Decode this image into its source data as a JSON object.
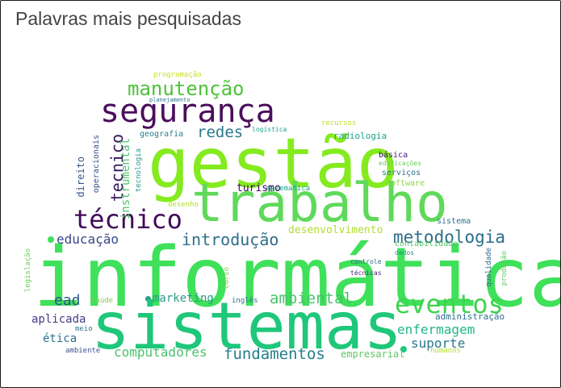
{
  "title": "Palavras mais pesquisadas",
  "words": [
    {
      "text": "informática",
      "color": "#3fe05a"
    },
    {
      "text": "sistemas",
      "color": "#1fc77a"
    },
    {
      "text": "gestão",
      "color": "#84eb1f"
    },
    {
      "text": "trabalho",
      "color": "#5fd95a"
    },
    {
      "text": "segurança",
      "color": "#4a0e5c"
    },
    {
      "text": "técnico",
      "color": "#420a59"
    },
    {
      "text": "eventos",
      "color": "#3ed44f"
    },
    {
      "text": "manutenção",
      "color": "#4ec23a"
    },
    {
      "text": "metodologia",
      "color": "#2c6d8a"
    },
    {
      "text": "introdução",
      "color": "#2f6f8c"
    },
    {
      "text": "fundamentos",
      "color": "#237f8c"
    },
    {
      "text": "ambiental",
      "color": "#48c16a"
    },
    {
      "text": "tecnico",
      "color": "#35185e"
    },
    {
      "text": "redes",
      "color": "#2a788e"
    },
    {
      "text": "educação",
      "color": "#3a4689"
    },
    {
      "text": "enfermagem",
      "color": "#20b78a"
    },
    {
      "text": "suporte",
      "color": "#2a788e"
    },
    {
      "text": "computadores",
      "color": "#4ac16d"
    },
    {
      "text": "ead",
      "color": "#2b5689"
    },
    {
      "text": "desenvolvimento",
      "color": "#b0dd2f"
    },
    {
      "text": "marketing",
      "color": "#2a9b86"
    },
    {
      "text": "aplicada",
      "color": "#433d84"
    },
    {
      "text": "ética",
      "color": "#2c728e"
    },
    {
      "text": "turismo",
      "color": "#44055a"
    },
    {
      "text": "instrumental",
      "color": "#4fc46a"
    },
    {
      "text": "empresarial",
      "color": "#5ec962"
    },
    {
      "text": "administração",
      "color": "#2d708e"
    },
    {
      "text": "direito",
      "color": "#3a548c"
    },
    {
      "text": "operacionais",
      "color": "#3b528b"
    },
    {
      "text": "radiologia",
      "color": "#20a386"
    },
    {
      "text": "geografia",
      "color": "#26818e"
    },
    {
      "text": "tecnologia",
      "color": "#2a9a8a"
    },
    {
      "text": "básica",
      "color": "#46157a"
    },
    {
      "text": "serviços",
      "color": "#2a778e"
    },
    {
      "text": "software",
      "color": "#8fd744"
    },
    {
      "text": "sistema",
      "color": "#2d728e"
    },
    {
      "text": "contabilidade",
      "color": "#52c569"
    },
    {
      "text": "programação",
      "color": "#c8e020"
    },
    {
      "text": "recursos",
      "color": "#bddf26"
    },
    {
      "text": "matematica",
      "color": "#1fa187"
    },
    {
      "text": "desenho",
      "color": "#b5de2b"
    },
    {
      "text": "inglês",
      "color": "#2d708e"
    },
    {
      "text": "saúde",
      "color": "#7ad151"
    },
    {
      "text": "meio",
      "color": "#2a788e"
    },
    {
      "text": "ambiente",
      "color": "#3b528b"
    },
    {
      "text": "curso",
      "color": "#7ad151"
    },
    {
      "text": "legislação",
      "color": "#6ccd5a"
    },
    {
      "text": "qualidade",
      "color": "#31688e"
    },
    {
      "text": "produção",
      "color": "#5ec962"
    },
    {
      "text": "humanos",
      "color": "#b5de2b"
    },
    {
      "text": "dados",
      "color": "#21918c"
    },
    {
      "text": "controle",
      "color": "#31688e"
    },
    {
      "text": "técnicas",
      "color": "#482878"
    },
    {
      "text": "edificações",
      "color": "#6ccd5a"
    },
    {
      "text": "logística",
      "color": "#1fa187"
    },
    {
      "text": "planejamento",
      "color": "#2d708e"
    }
  ]
}
